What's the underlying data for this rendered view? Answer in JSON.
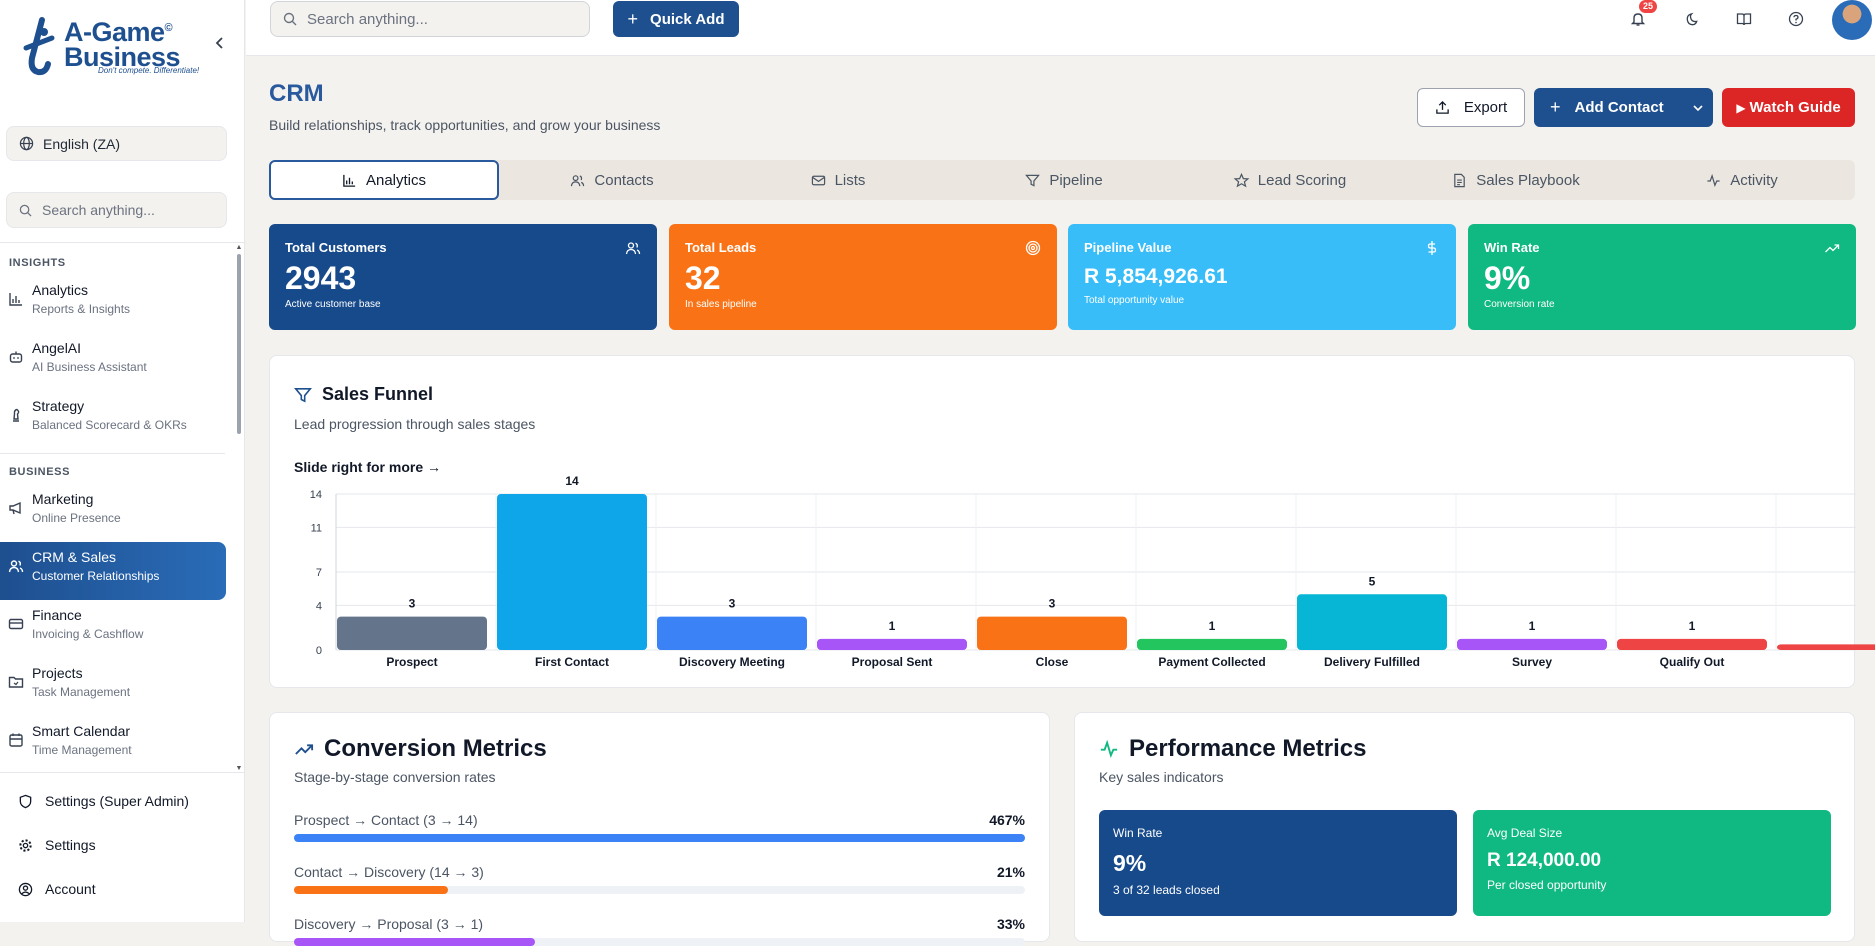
{
  "brand": {
    "name_line1": "A-Game",
    "name_line2": "Business",
    "registered": "©",
    "tagline": "Don't compete. Differentiate!"
  },
  "sidebar": {
    "language": "English (ZA)",
    "search_placeholder": "Search anything...",
    "sections": [
      {
        "label": "INSIGHTS",
        "items": [
          {
            "title": "Analytics",
            "subtitle": "Reports & Insights",
            "icon": "bar-chart-icon"
          },
          {
            "title": "AngelAI",
            "subtitle": "AI Business Assistant",
            "icon": "bot-icon"
          },
          {
            "title": "Strategy",
            "subtitle": "Balanced Scorecard & OKRs",
            "icon": "chess-icon"
          }
        ]
      },
      {
        "label": "BUSINESS",
        "items": [
          {
            "title": "Marketing",
            "subtitle": "Online Presence",
            "icon": "megaphone-icon"
          },
          {
            "title": "CRM & Sales",
            "subtitle": "Customer Relationships",
            "icon": "users-icon",
            "active": true
          },
          {
            "title": "Finance",
            "subtitle": "Invoicing & Cashflow",
            "icon": "credit-card-icon"
          },
          {
            "title": "Projects",
            "subtitle": "Task Management",
            "icon": "folder-icon"
          },
          {
            "title": "Smart Calendar",
            "subtitle": "Time Management",
            "icon": "calendar-icon"
          }
        ]
      }
    ],
    "bottom": [
      {
        "label": "Settings (Super Admin)",
        "icon": "shield-icon"
      },
      {
        "label": "Settings",
        "icon": "gear-icon"
      },
      {
        "label": "Account",
        "icon": "user-circle-icon"
      }
    ]
  },
  "topbar": {
    "search_placeholder": "Search anything...",
    "quick_add": "Quick Add",
    "notifications_count": "25"
  },
  "header": {
    "title": "CRM",
    "subtitle": "Build relationships, track opportunities, and grow your business",
    "export": "Export",
    "add_contact": "Add Contact",
    "watch_guide": "Watch Guide"
  },
  "tabs": [
    {
      "label": "Analytics",
      "icon": "bar-chart-icon",
      "active": true
    },
    {
      "label": "Contacts",
      "icon": "users-icon"
    },
    {
      "label": "Lists",
      "icon": "mail-icon"
    },
    {
      "label": "Pipeline",
      "icon": "filter-icon"
    },
    {
      "label": "Lead Scoring",
      "icon": "star-icon"
    },
    {
      "label": "Sales Playbook",
      "icon": "document-icon"
    },
    {
      "label": "Activity",
      "icon": "activity-icon"
    }
  ],
  "kpis": [
    {
      "title": "Total Customers",
      "value": "2943",
      "sub": "Active customer base",
      "color": "#174a8b",
      "icon": "users-icon"
    },
    {
      "title": "Total Leads",
      "value": "32",
      "sub": "In sales pipeline",
      "color": "#f97316",
      "icon": "target-icon"
    },
    {
      "title": "Pipeline Value",
      "value": "R 5,854,926.61",
      "sub": "Total opportunity value",
      "color": "#38bdf8",
      "icon": "dollar-icon"
    },
    {
      "title": "Win Rate",
      "value": "9%",
      "sub": "Conversion rate",
      "color": "#10b981",
      "icon": "trending-up-icon"
    }
  ],
  "funnel": {
    "title": "Sales Funnel",
    "subtitle": "Lead progression through sales stages",
    "hint": "Slide right for more →"
  },
  "chart_data": {
    "type": "bar",
    "categories": [
      "Prospect",
      "First Contact",
      "Discovery Meeting",
      "Proposal Sent",
      "Close",
      "Payment Collected",
      "Delivery Fulfilled",
      "Survey",
      "Qualify Out",
      ""
    ],
    "values": [
      3,
      14,
      3,
      1,
      3,
      1,
      5,
      1,
      1,
      0.5
    ],
    "colors": [
      "#64748b",
      "#0ea5e9",
      "#3b82f6",
      "#a855f7",
      "#f97316",
      "#22c55e",
      "#06b6d4",
      "#a855f7",
      "#ef4444",
      "#ef4444"
    ],
    "yticks": [
      0,
      4,
      7,
      11,
      14
    ],
    "ylim": [
      0,
      14
    ],
    "grid": true,
    "xlabel": "",
    "ylabel": ""
  },
  "conversion": {
    "title": "Conversion Metrics",
    "subtitle": "Stage-by-stage conversion rates",
    "rows": [
      {
        "label": "Prospect → Contact (3 → 14)",
        "value": "467%",
        "fill": 1.0,
        "color": "#3b82f6"
      },
      {
        "label": "Contact → Discovery (14 → 3)",
        "value": "21%",
        "fill": 0.21,
        "color": "#f97316"
      },
      {
        "label": "Discovery → Proposal (3 → 1)",
        "value": "33%",
        "fill": 0.33,
        "color": "#a855f7"
      }
    ]
  },
  "performance": {
    "title": "Performance Metrics",
    "subtitle": "Key sales indicators",
    "boxes": [
      {
        "title": "Win Rate",
        "value": "9%",
        "sub": "3 of 32 leads closed",
        "color": "#174a8b"
      },
      {
        "title": "Avg Deal Size",
        "value": "R 124,000.00",
        "sub": "Per closed opportunity",
        "color": "#10b981"
      }
    ]
  }
}
